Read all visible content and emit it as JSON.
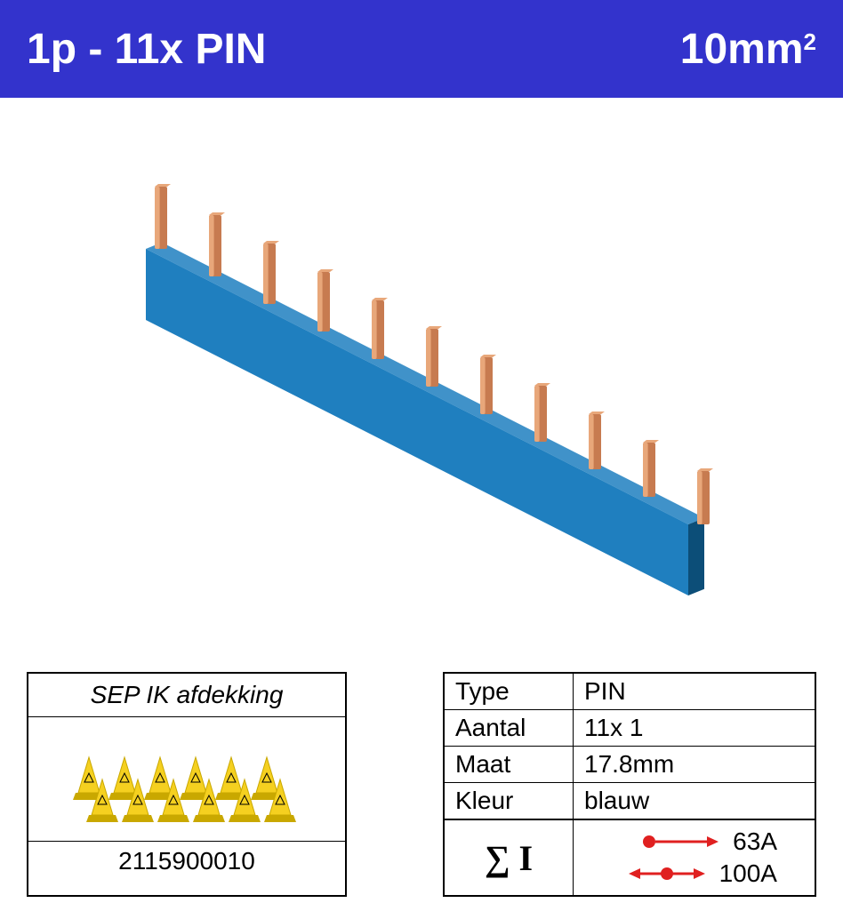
{
  "header": {
    "left_text": "1p - 11x PIN",
    "right_value": "10mm",
    "right_exponent": "2",
    "background_color": "#3333cc",
    "text_color": "#ffffff"
  },
  "product": {
    "bar_color": "#1f7fbf",
    "bar_shadow": "#0c4e78",
    "pin_color": "#c77b50",
    "pin_highlight": "#e8a77a",
    "pin_count": 11
  },
  "accessory": {
    "title": "SEP IK afdekking",
    "code": "2115900010",
    "cover_color": "#f5d020",
    "cover_shadow": "#c9a800"
  },
  "specs": {
    "rows": [
      {
        "label": "Type",
        "value": "PIN"
      },
      {
        "label": "Aantal",
        "value": "11x 1"
      },
      {
        "label": "Maat",
        "value": "17.8mm"
      },
      {
        "label": "Kleur",
        "value": "blauw"
      }
    ],
    "sigma_label": "∑ I",
    "ratings": [
      {
        "arrow_type": "single",
        "value": "63A"
      },
      {
        "arrow_type": "double",
        "value": "100A"
      }
    ],
    "arrow_color": "#e02020"
  }
}
